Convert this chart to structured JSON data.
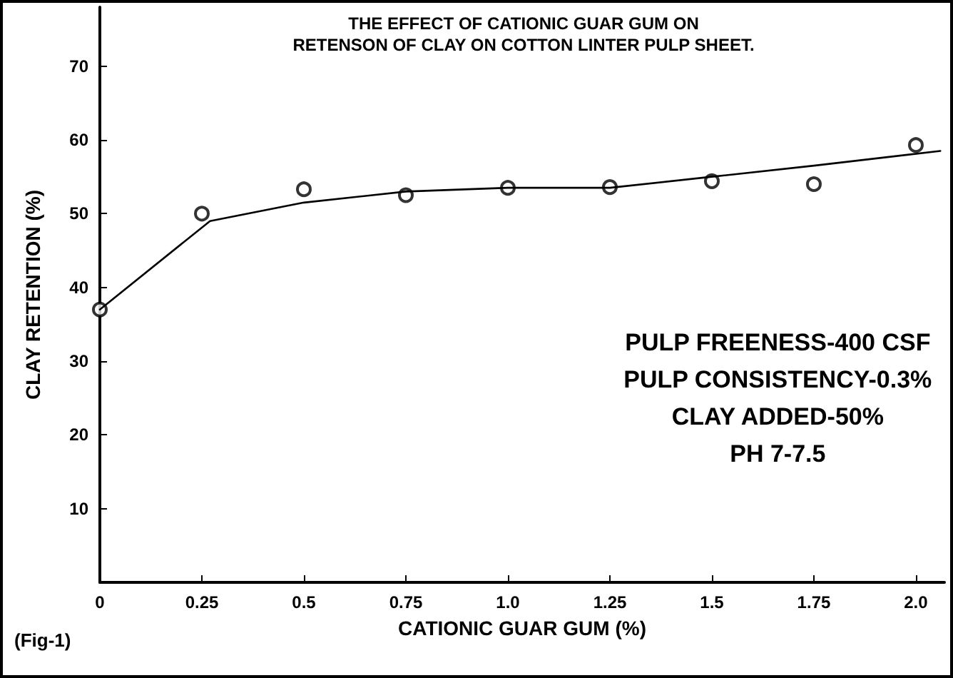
{
  "chart_data": {
    "type": "scatter",
    "title": "THE EFFECT OF CATIONIC GUAR GUM ON\nRETENSON OF CLAY ON COTTON LINTER PULP SHEET.",
    "xlabel": "CATIONIC GUAR GUM (%)",
    "ylabel": "CLAY RETENTION (%)",
    "series": [
      {
        "color": "#000000",
        "marker": "circle",
        "x": [
          0,
          0.25,
          0.5,
          0.75,
          1.0,
          1.25,
          1.5,
          1.75,
          2.0
        ],
        "values": [
          37,
          50,
          53.3,
          52.5,
          53.5,
          53.6,
          54.4,
          54,
          59.3
        ]
      },
      {
        "type": "line",
        "color": "#000000",
        "marker": "none",
        "line_style": "solid",
        "x": [
          0,
          0.27,
          0.5,
          0.75,
          1.0,
          1.25,
          1.5,
          1.75,
          2.06
        ],
        "values": [
          37,
          49,
          51.5,
          53,
          53.5,
          53.5,
          55,
          56.5,
          58.5
        ]
      }
    ],
    "xlim": [
      0,
      2.07
    ],
    "ylim": [
      0,
      78
    ],
    "xticks": [
      0,
      0.25,
      0.5,
      0.75,
      {
        "value": 1,
        "label": "1.0"
      },
      1.25,
      1.5,
      1.75,
      {
        "value": 2,
        "label": "2.0"
      }
    ],
    "yticks": [
      10,
      20,
      30,
      40,
      50,
      60,
      70
    ],
    "annotations": [
      "PULP FREENESS-400 CSF\nPULP CONSISTENCY-0.3%\nCLAY ADDED-50%\nPH 7-7.5",
      "(Fig-1)"
    ],
    "grid": false
  }
}
